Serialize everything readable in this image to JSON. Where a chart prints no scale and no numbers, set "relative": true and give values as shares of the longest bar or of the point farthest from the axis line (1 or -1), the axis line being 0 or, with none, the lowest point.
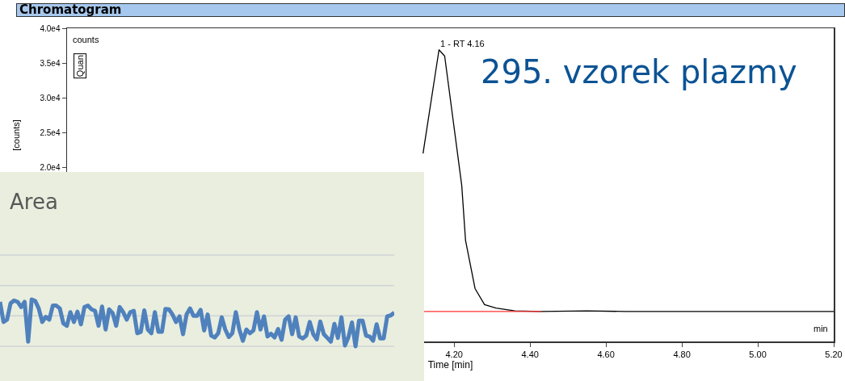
{
  "chart_data": [
    {
      "type": "line",
      "title": "Chromatogram",
      "xlabel": "Time [min]",
      "ylabel": "[counts]",
      "xlim": [
        3.18,
        5.2
      ],
      "ylim": [
        -5000,
        40000
      ],
      "xticks": [
        {
          "value": 4.2,
          "label": "4.20"
        },
        {
          "value": 4.4,
          "label": "4.40"
        },
        {
          "value": 4.6,
          "label": "4.60"
        },
        {
          "value": 4.8,
          "label": "4.80"
        },
        {
          "value": 5.0,
          "label": "5.00"
        },
        {
          "value": 5.2,
          "label": "5.20"
        }
      ],
      "yticks": [
        {
          "value": 20000,
          "label": "2.0e4"
        },
        {
          "value": 25000,
          "label": "2.5e4"
        },
        {
          "value": 30000,
          "label": "3.0e4"
        },
        {
          "value": 35000,
          "label": "3.5e4"
        },
        {
          "value": 40000,
          "label": "4.0e4"
        }
      ],
      "series": [
        {
          "color": "#000000",
          "x": [
            4.118,
            4.16,
            4.175,
            4.22,
            4.23,
            4.255,
            4.28,
            4.31,
            4.36,
            4.43,
            4.55,
            4.65,
            5.2
          ],
          "values": [
            22000,
            36900,
            36000,
            17400,
            9500,
            2600,
            300,
            -200,
            -600,
            -700,
            -600,
            -700,
            -700
          ]
        },
        {
          "color": "#ff3030",
          "x": [
            4.12,
            4.43
          ],
          "values": [
            -700,
            -700
          ]
        }
      ],
      "annotations": [
        "counts",
        "Quan",
        "min",
        "295. vzorek plazmy",
        {
          "text": "1 - RT 4.16",
          "x": 4.16,
          "y": 36900
        }
      ],
      "grid": false,
      "marker": "none",
      "line_style": "solid"
    },
    {
      "type": "line",
      "title": "Area",
      "relative": true,
      "grid": false,
      "ref_lines": [
        {
          "axis": "y",
          "value": 0,
          "color": "#cfd4d6"
        },
        {
          "axis": "y",
          "value": 0.65,
          "color": "#cfd4d6"
        },
        {
          "axis": "y",
          "value": 1.3,
          "color": "#cfd4d6"
        },
        {
          "axis": "y",
          "value": 1.95,
          "color": "#cfd4d6"
        }
      ],
      "marker": "none",
      "categories": [
        null,
        null,
        null,
        null,
        null,
        null,
        null,
        null,
        null,
        null,
        null,
        null,
        null,
        null,
        null,
        null,
        null,
        null,
        null,
        null,
        null,
        null,
        null,
        null,
        null,
        null,
        null,
        null,
        null,
        null,
        null,
        null,
        null,
        null,
        null,
        null,
        null,
        null,
        null,
        null,
        null,
        null,
        null,
        null,
        null,
        null,
        null,
        null,
        null,
        null,
        null,
        null,
        null,
        null,
        null,
        null,
        null,
        null,
        null,
        null,
        null,
        null,
        null,
        null,
        null,
        null,
        null,
        null,
        null,
        null,
        null,
        null,
        null,
        null,
        null,
        null,
        null,
        null,
        null,
        null,
        null,
        null,
        null,
        null,
        null,
        null,
        null,
        null,
        null,
        null,
        null,
        null,
        null,
        null,
        null,
        null,
        null,
        null,
        null,
        null,
        null,
        null,
        null,
        null,
        null,
        null,
        null,
        null,
        null,
        null,
        null,
        null,
        null
      ],
      "series": [
        {
          "color": "#4f81bd",
          "values": [
            0.95,
            0.52,
            0.57,
            0.92,
            0.98,
            0.95,
            0.84,
            0.95,
            0.1,
            1.0,
            0.97,
            0.81,
            0.52,
            0.63,
            0.57,
            0.87,
            0.87,
            0.81,
            0.49,
            0.44,
            0.73,
            0.52,
            0.74,
            0.47,
            0.84,
            0.87,
            0.79,
            0.76,
            0.44,
            0.85,
            0.36,
            0.79,
            0.71,
            0.44,
            0.84,
            0.73,
            0.57,
            0.73,
            0.76,
            0.28,
            0.31,
            0.77,
            0.36,
            0.28,
            0.73,
            0.31,
            0.31,
            0.8,
            0.79,
            0.68,
            0.52,
            0.64,
            0.26,
            0.68,
            0.81,
            0.65,
            0.65,
            0.78,
            0.34,
            0.68,
            0.23,
            0.19,
            0.28,
            0.62,
            0.36,
            0.2,
            0.28,
            0.73,
            0.36,
            0.12,
            0.36,
            0.28,
            0.34,
            0.73,
            0.36,
            0.64,
            0.21,
            0.27,
            0.19,
            0.37,
            0.14,
            0.57,
            0.64,
            0.26,
            0.62,
            0.21,
            0.17,
            0.23,
            0.52,
            0.26,
            0.15,
            0.53,
            0.26,
            0.18,
            0.1,
            0.48,
            0.18,
            0.62,
            0.02,
            0.2,
            0.51,
            0,
            0.55,
            0.55,
            0.23,
            0.21,
            0.12,
            0.47,
            0.17,
            0.17,
            0.64,
            0.66,
            0.72
          ]
        }
      ]
    }
  ]
}
